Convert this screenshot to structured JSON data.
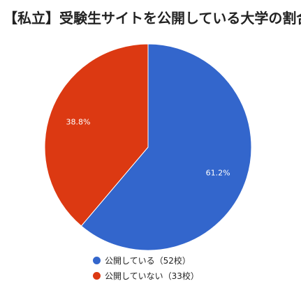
{
  "title": "【私立】受験生サイトを公開している大学の割合",
  "colors": {
    "series_blue": "#3366CC",
    "series_red": "#DC3912"
  },
  "chart_data": {
    "type": "pie",
    "title": "【私立】受験生サイトを公開している大学の割合",
    "slices": [
      {
        "label": "公開している（52校）",
        "value": 52,
        "percent_label": "61.2%",
        "color": "#3366CC"
      },
      {
        "label": "公開していない（33校）",
        "value": 33,
        "percent_label": "38.8%",
        "color": "#DC3912"
      }
    ],
    "legend_position": "bottom"
  }
}
